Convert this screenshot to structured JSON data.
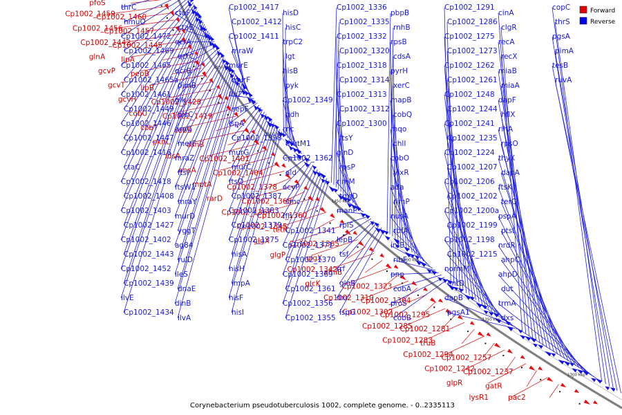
{
  "caption": "Corynebacterium pseudotuberculosis 1002, complete genome. - 0..2335113",
  "legend": {
    "forward": {
      "label": "Forward",
      "color": "#e00000"
    },
    "reverse": {
      "label": "Reverse",
      "color": "#0000ee"
    }
  },
  "ticks": [
    "1600 kbp",
    "1550 kbp",
    "1500 kbp",
    "1450 kbp",
    "1400 kbp",
    "1350 kbp",
    "1300 kbp"
  ],
  "genes_forward": [
    "pfoS",
    "Cp1002_1459",
    "Cp1002_1460",
    "Cp1002_1456",
    "Cp1002_1457",
    "Cp1002_1442",
    "Cp1002_1445",
    "glnA",
    "lipA",
    "gcvP",
    "pepB",
    "gcvT",
    "lipB",
    "gcvH",
    "Cp1002_1428",
    "cobU",
    "Cp1002_1419",
    "cobT",
    "cobS",
    "pknL",
    "asnB",
    "idsA",
    "Cp1002_1401",
    "ansA",
    "Cp1002_1404",
    "mptA",
    "Cp1002_1378",
    "rarD",
    "Cp1002_1368",
    "Cp1002_1367",
    "Cp1002_1360",
    "Cp1002_1345",
    "tetR",
    "glgX",
    "Cp1002_1365",
    "glgP",
    "glgX",
    "Cp1002_1342",
    "amiB",
    "glcK",
    "Cp1002_1323",
    "Cp1002_1310",
    "Cp1002_1304",
    "Cp1002_1302",
    "Cp1002_1295",
    "Cp1002_1285",
    "Cp1002_1281",
    "Cp1002_1283",
    "truB",
    "Cp1002_1294",
    "Cp1002_1257",
    "Cp1002_1242",
    "Cp1002_1237",
    "glpR",
    "gatR",
    "lysR1",
    "pac2"
  ],
  "genes_reverse": [
    "thrC",
    "hmuO",
    "Cp1002_1472",
    "Cp1002_1469",
    "Cp1002_1465",
    "Cp1002_1465a",
    "Cp1002_1461",
    "Cp1002_1449",
    "Cp1002_1446",
    "Cp1002_1447",
    "Cp1002_1416",
    "ctaC",
    "Cp1002_1418",
    "Cp1002_1408",
    "Cp1002_1403",
    "Cp1002_1427",
    "Cp1002_1402",
    "Cp1002_1443",
    "Cp1002_1452",
    "Cp1002_1439",
    "ilvE",
    "Cp1002_1434",
    "ctaF",
    "ctaE",
    "qcrA",
    "qcrC",
    "qcrB",
    "pimB",
    "glk",
    "plsC",
    "aroG",
    "metF",
    "mraZ",
    "ftsI",
    "ftsW1",
    "mraY",
    "murD",
    "yggT",
    "ag84",
    "rulD",
    "ileS",
    "dnaE",
    "dinB",
    "ilvA",
    "Cp1002_1417",
    "Cp1002_1412",
    "Cp1002_1411",
    "mraW",
    "murE",
    "murF",
    "ftsZ",
    "sepF",
    "lspA",
    "Cp1002_1398",
    "murG",
    "murC",
    "ftsQ",
    "Cp1002_1387",
    "Cp1002_1383",
    "Cp1002_1379",
    "Cp1002_1375",
    "hisA",
    "hisH",
    "impA",
    "hisF",
    "hisI",
    "hisD",
    "hisC",
    "trpC2",
    "lgt",
    "hisB",
    "pyk",
    "Cp1002_1349",
    "gdh",
    "rnc",
    "mutM1",
    "Cp1002_1362",
    "ald",
    "acyP",
    "smc",
    "ffh",
    "Cp1002_1341",
    "Cp1002_1371",
    "Cp1002_1370",
    "Cp1002_1369",
    "Cp1002_1361",
    "Cp1002_1356",
    "Cp1002_1355",
    "Cp1002_1336",
    "Cp1002_1335",
    "Cp1002_1332",
    "Cp1002_1320",
    "Cp1002_1318",
    "Cp1002_1314",
    "Cp1002_1313",
    "Cp1002_1312",
    "Cp1002_1300",
    "ftsY",
    "glnD",
    "rpsP",
    "rimM",
    "trmD",
    "manP",
    "rplS",
    "lepB",
    "tsf",
    "rrf",
    "glnB",
    "dxr",
    "ispG",
    "pbpB",
    "rnhB",
    "rpsB",
    "cdsA",
    "pyrH",
    "xerC",
    "mapB",
    "cobQ",
    "mqo",
    "chlI",
    "cobO",
    "ylxR",
    "ada",
    "rimP",
    "nusA",
    "rbfA",
    "infB",
    "ribF",
    "pnp",
    "cobA",
    "proS",
    "cobB",
    "Cp1002_1291",
    "Cp1002_1286",
    "Cp1002_1275",
    "Cp1002_1273",
    "Cp1002_1262",
    "Cp1002_1261",
    "Cp1002_1248",
    "Cp1002_1244",
    "Cp1002_1241",
    "Cp1002_1235",
    "Cp1002_1224",
    "Cp1002_1207",
    "Cp1002_1206",
    "Cp1002_1202",
    "Cp1002_1200a",
    "Cp1002_1199",
    "Cp1002_1198",
    "Cp1002_1215",
    "normM",
    "entD",
    "dapB",
    "pgsA1",
    "cinA",
    "clgR",
    "recA",
    "recX",
    "miaB",
    "miaA",
    "dapF",
    "hflX",
    "rihA",
    "rpsO",
    "thyX",
    "dapA",
    "ftsK",
    "terC",
    "pspA",
    "ptsI",
    "nrdR",
    "ahpC",
    "ahpD",
    "dut",
    "trmA",
    "dxs",
    "copC",
    "thrS",
    "pgsA",
    "pimA",
    "tesB",
    "ruvA"
  ]
}
